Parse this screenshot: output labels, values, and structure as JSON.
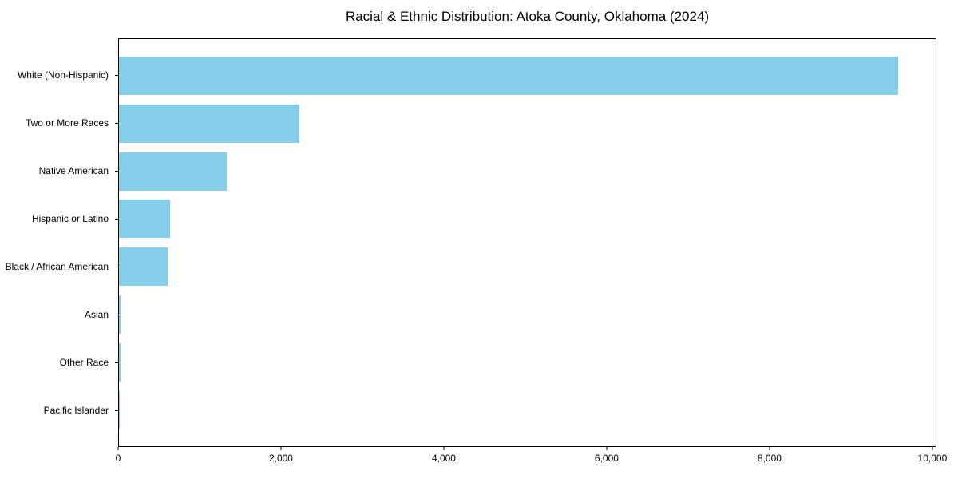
{
  "chart_data": {
    "type": "bar",
    "orientation": "horizontal",
    "title": "Racial & Ethnic Distribution: Atoka County, Oklahoma (2024)",
    "categories": [
      "White (Non-Hispanic)",
      "Two or More Races",
      "Native American",
      "Hispanic or Latino",
      "Black / African American",
      "Asian",
      "Other Race",
      "Pacific Islander"
    ],
    "values": [
      9590,
      2220,
      1330,
      630,
      600,
      20,
      15,
      5
    ],
    "bar_color": "#87CEEB",
    "xlabel": "",
    "ylabel": "",
    "xlim": [
      0,
      10050
    ],
    "xticks": [
      0,
      2000,
      4000,
      6000,
      8000,
      10000
    ],
    "xtick_labels": [
      "0",
      "2,000",
      "4,000",
      "6,000",
      "8,000",
      "10,000"
    ],
    "grid": false,
    "legend": null
  }
}
